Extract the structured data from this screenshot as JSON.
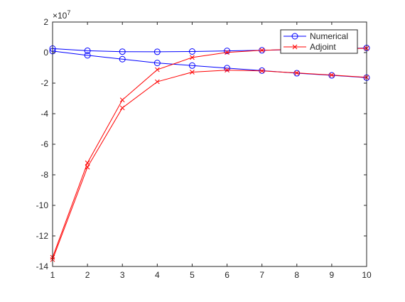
{
  "chart_data": {
    "type": "line",
    "title": "",
    "xlabel": "",
    "ylabel": "",
    "exponent_label": "×10",
    "exponent_power": "7",
    "x": [
      1,
      2,
      3,
      4,
      5,
      6,
      7,
      8,
      9,
      10
    ],
    "xlim": [
      1,
      10
    ],
    "ylim": [
      -14,
      2
    ],
    "x_ticks": [
      "1",
      "2",
      "3",
      "4",
      "5",
      "6",
      "7",
      "8",
      "9",
      "10"
    ],
    "y_ticks": [
      {
        "value": 2,
        "label": "2"
      },
      {
        "value": 0,
        "label": "0"
      },
      {
        "value": -2,
        "label": "-2"
      },
      {
        "value": -4,
        "label": "-4"
      },
      {
        "value": -6,
        "label": "-6"
      },
      {
        "value": -8,
        "label": "-8"
      },
      {
        "value": -10,
        "label": "-10"
      },
      {
        "value": -12,
        "label": "-12"
      },
      {
        "value": -14,
        "label": "-14"
      }
    ],
    "grid": false,
    "legend_position": "top-right",
    "legend": [
      {
        "label": "Numerical",
        "color": "#0000ff",
        "marker": "circle"
      },
      {
        "label": "Adjoint",
        "color": "#ff0000",
        "marker": "x"
      }
    ],
    "series": [
      {
        "legend_index": 0,
        "color": "#0000ff",
        "marker": "circle",
        "values": [
          0.26,
          0.12,
          0.06,
          0.05,
          0.07,
          0.11,
          0.15,
          0.2,
          0.25,
          0.3
        ]
      },
      {
        "legend_index": 0,
        "color": "#0000ff",
        "marker": "circle",
        "values": [
          0.1,
          -0.18,
          -0.43,
          -0.68,
          -0.85,
          -1.02,
          -1.18,
          -1.35,
          -1.49,
          -1.64
        ]
      },
      {
        "legend_index": 1,
        "color": "#ff0000",
        "marker": "x",
        "values": [
          -13.4,
          -7.22,
          -3.1,
          -1.12,
          -0.32,
          0.01,
          0.15,
          0.22,
          0.25,
          0.28
        ]
      },
      {
        "legend_index": 1,
        "color": "#ff0000",
        "marker": "x",
        "values": [
          -13.55,
          -7.5,
          -3.62,
          -1.91,
          -1.28,
          -1.15,
          -1.2,
          -1.33,
          -1.47,
          -1.62
        ]
      }
    ]
  }
}
